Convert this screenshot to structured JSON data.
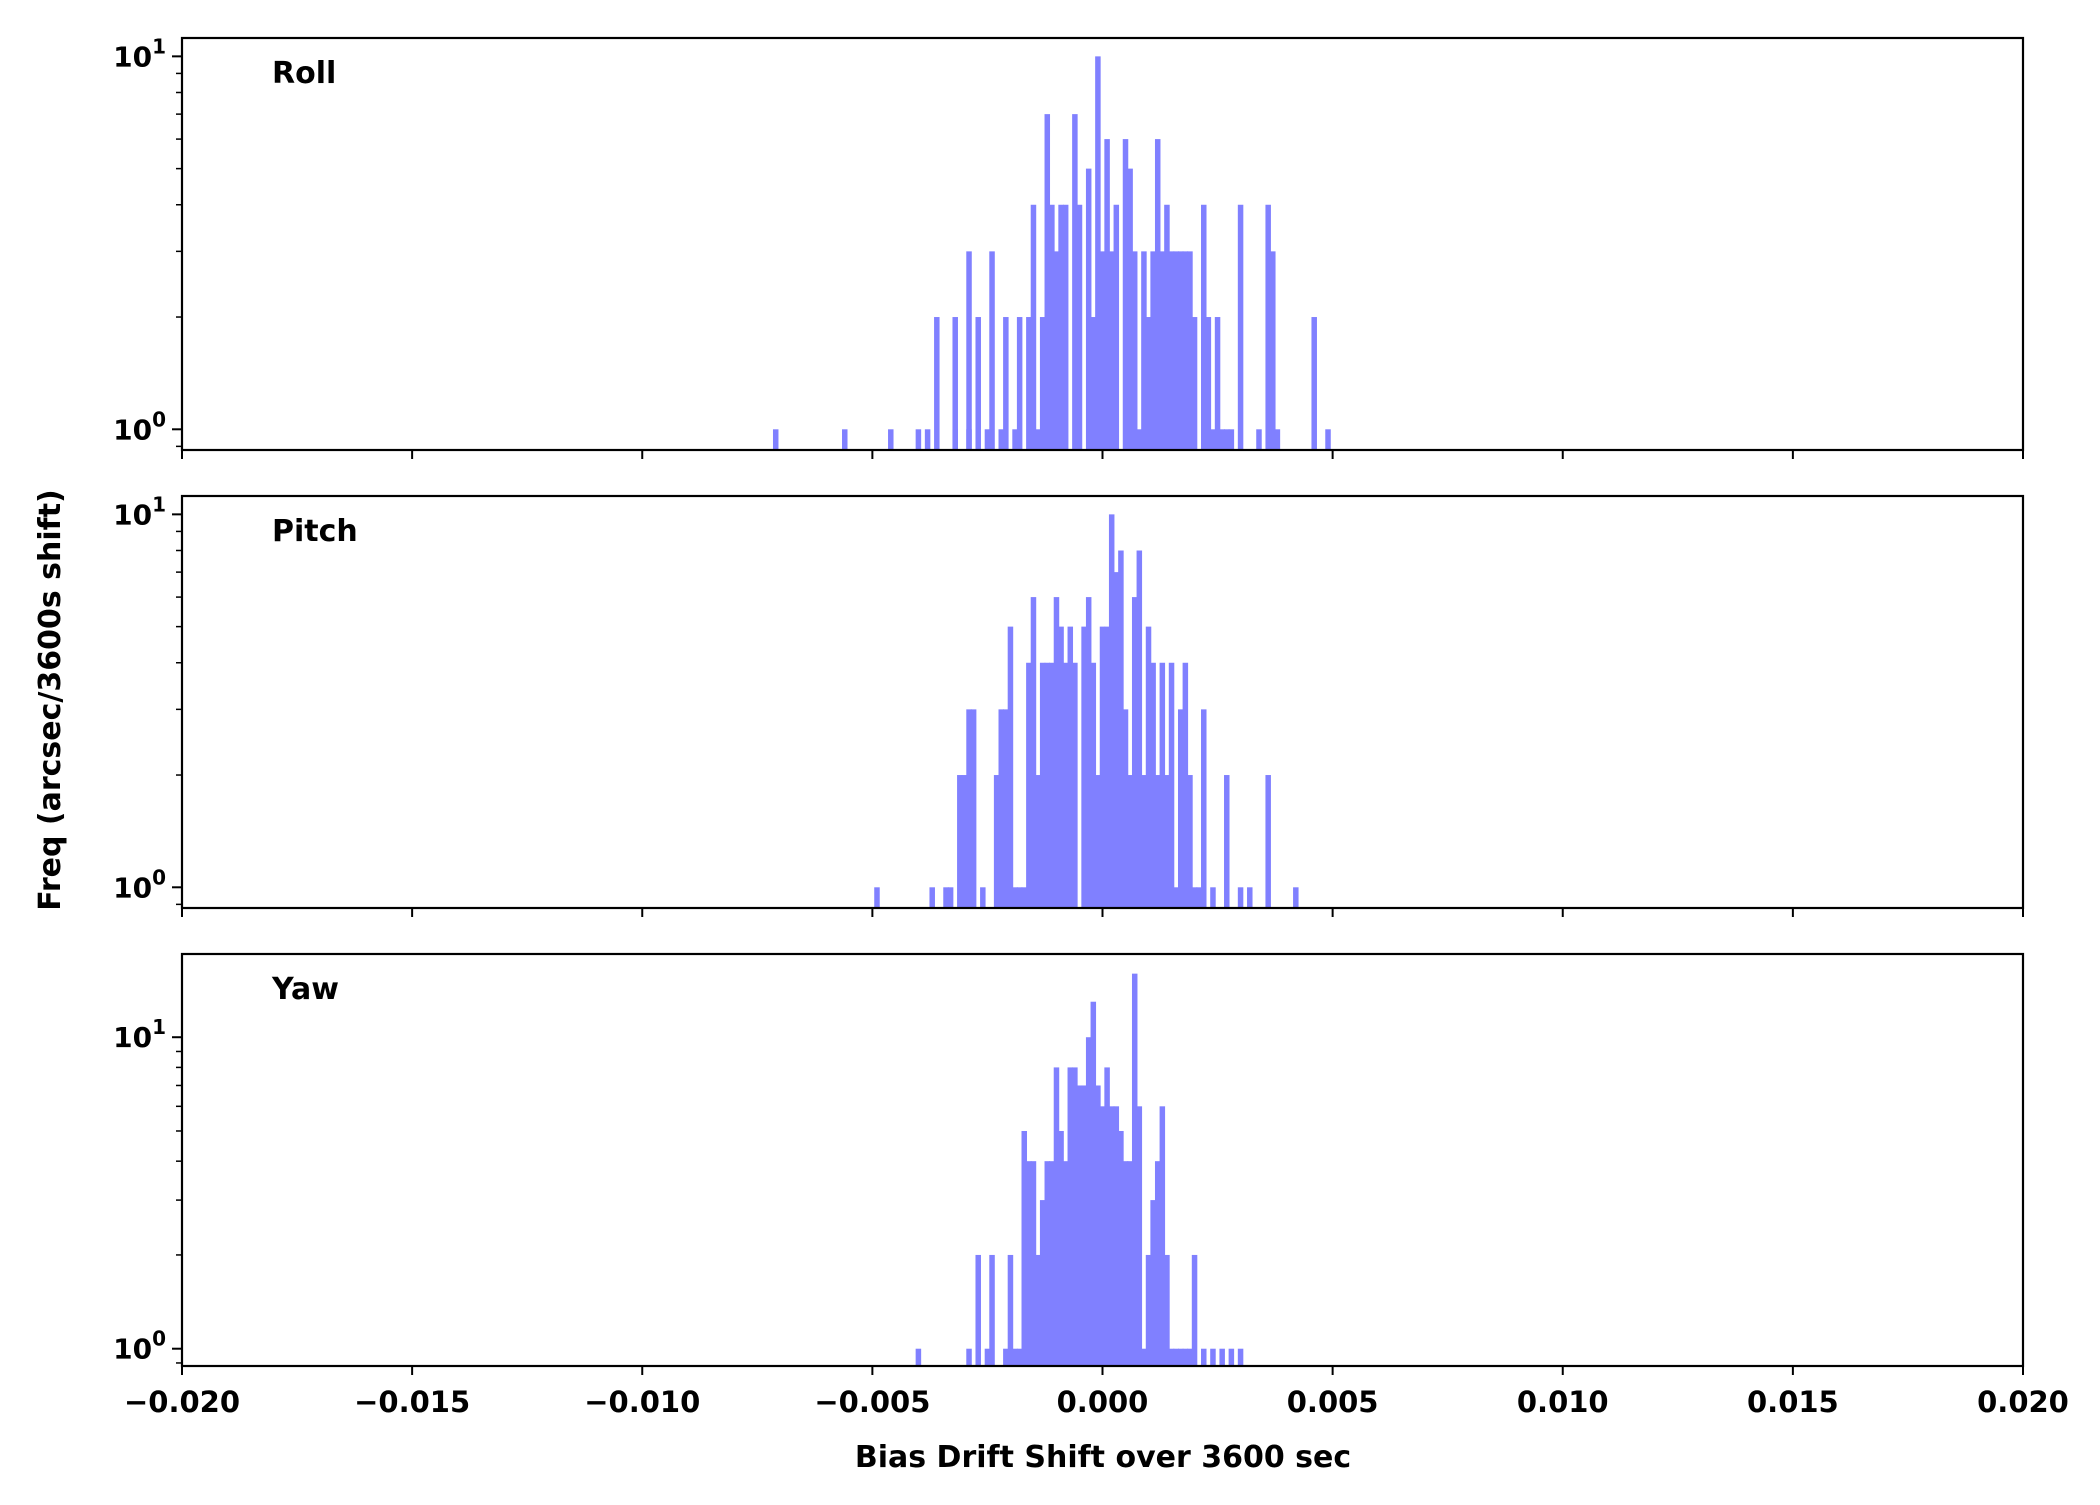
{
  "chart_data": {
    "type": "bar",
    "xlabel": "Bias Drift Shift over 3600 sec",
    "ylabel": "Freq (arcsec/3600s shift)",
    "bar_color": "#8080ff",
    "x_range": [
      -0.02,
      0.02
    ],
    "x_ticks": [
      "−0.020",
      "−0.015",
      "−0.010",
      "−0.005",
      "0.000",
      "0.005",
      "0.010",
      "0.015",
      "0.020"
    ],
    "y_scale": "log",
    "grid": false,
    "panels": [
      {
        "label": "Roll",
        "y_range": [
          0.88,
          11.2
        ],
        "y_ticks": [
          {
            "base": "10",
            "exp": "0"
          },
          {
            "base": "10",
            "exp": "1"
          }
        ],
        "bins": [
          {
            "x": -0.0071,
            "count": 1
          },
          {
            "x": -0.0056,
            "count": 1
          },
          {
            "x": -0.0046,
            "count": 1
          },
          {
            "x": -0.004,
            "count": 1
          },
          {
            "x": -0.0038,
            "count": 1
          },
          {
            "x": -0.0036,
            "count": 2
          },
          {
            "x": -0.0032,
            "count": 1
          },
          {
            "x": -0.0032,
            "count": 2
          },
          {
            "x": -0.0029,
            "count": 1
          },
          {
            "x": -0.0029,
            "count": 3
          },
          {
            "x": -0.0027,
            "count": 2
          },
          {
            "x": -0.0025,
            "count": 1
          },
          {
            "x": -0.0024,
            "count": 3
          },
          {
            "x": -0.0022,
            "count": 1
          },
          {
            "x": -0.0021,
            "count": 2
          },
          {
            "x": -0.0019,
            "count": 1
          },
          {
            "x": -0.0018,
            "count": 2
          },
          {
            "x": -0.0016,
            "count": 2
          },
          {
            "x": -0.0015,
            "count": 4
          },
          {
            "x": -0.0014,
            "count": 1
          },
          {
            "x": -0.0013,
            "count": 2
          },
          {
            "x": -0.0012,
            "count": 7
          },
          {
            "x": -0.0011,
            "count": 4
          },
          {
            "x": -0.001,
            "count": 3
          },
          {
            "x": -0.0009,
            "count": 4
          },
          {
            "x": -0.0008,
            "count": 4
          },
          {
            "x": -0.0006,
            "count": 7
          },
          {
            "x": -0.0005,
            "count": 4
          },
          {
            "x": -0.0003,
            "count": 5
          },
          {
            "x": -0.0002,
            "count": 2
          },
          {
            "x": -0.0001,
            "count": 10
          },
          {
            "x": 0.0,
            "count": 3
          },
          {
            "x": 0.0001,
            "count": 6
          },
          {
            "x": 0.0002,
            "count": 3
          },
          {
            "x": 0.0003,
            "count": 4
          },
          {
            "x": 0.0005,
            "count": 6
          },
          {
            "x": 0.0006,
            "count": 5
          },
          {
            "x": 0.0007,
            "count": 3
          },
          {
            "x": 0.0008,
            "count": 1
          },
          {
            "x": 0.0009,
            "count": 3
          },
          {
            "x": 0.001,
            "count": 2
          },
          {
            "x": 0.0011,
            "count": 3
          },
          {
            "x": 0.0012,
            "count": 6
          },
          {
            "x": 0.0013,
            "count": 3
          },
          {
            "x": 0.0014,
            "count": 4
          },
          {
            "x": 0.0015,
            "count": 3
          },
          {
            "x": 0.0016,
            "count": 3
          },
          {
            "x": 0.0017,
            "count": 3
          },
          {
            "x": 0.0018,
            "count": 3
          },
          {
            "x": 0.0019,
            "count": 3
          },
          {
            "x": 0.002,
            "count": 2
          },
          {
            "x": 0.0022,
            "count": 4
          },
          {
            "x": 0.0023,
            "count": 2
          },
          {
            "x": 0.0024,
            "count": 1
          },
          {
            "x": 0.0025,
            "count": 2
          },
          {
            "x": 0.0026,
            "count": 1
          },
          {
            "x": 0.0027,
            "count": 1
          },
          {
            "x": 0.0028,
            "count": 1
          },
          {
            "x": 0.003,
            "count": 4
          },
          {
            "x": 0.0034,
            "count": 1
          },
          {
            "x": 0.0036,
            "count": 4
          },
          {
            "x": 0.0037,
            "count": 3
          },
          {
            "x": 0.0038,
            "count": 1
          },
          {
            "x": 0.0046,
            "count": 2
          },
          {
            "x": 0.0049,
            "count": 1
          }
        ]
      },
      {
        "label": "Pitch",
        "y_range": [
          0.88,
          11.2
        ],
        "y_ticks": [
          {
            "base": "10",
            "exp": "0"
          },
          {
            "base": "10",
            "exp": "1"
          }
        ],
        "bins": [
          {
            "x": -0.0049,
            "count": 1
          },
          {
            "x": -0.0037,
            "count": 1
          },
          {
            "x": -0.0034,
            "count": 1
          },
          {
            "x": -0.0033,
            "count": 1
          },
          {
            "x": -0.0031,
            "count": 2
          },
          {
            "x": -0.003,
            "count": 2
          },
          {
            "x": -0.0029,
            "count": 3
          },
          {
            "x": -0.0028,
            "count": 3
          },
          {
            "x": -0.0026,
            "count": 1
          },
          {
            "x": -0.0023,
            "count": 2
          },
          {
            "x": -0.0022,
            "count": 3
          },
          {
            "x": -0.0021,
            "count": 3
          },
          {
            "x": -0.002,
            "count": 5
          },
          {
            "x": -0.0019,
            "count": 1
          },
          {
            "x": -0.0018,
            "count": 1
          },
          {
            "x": -0.0017,
            "count": 1
          },
          {
            "x": -0.0016,
            "count": 4
          },
          {
            "x": -0.0015,
            "count": 6
          },
          {
            "x": -0.0014,
            "count": 2
          },
          {
            "x": -0.0013,
            "count": 4
          },
          {
            "x": -0.0012,
            "count": 4
          },
          {
            "x": -0.0011,
            "count": 4
          },
          {
            "x": -0.001,
            "count": 6
          },
          {
            "x": -0.0009,
            "count": 5
          },
          {
            "x": -0.0008,
            "count": 4
          },
          {
            "x": -0.0007,
            "count": 5
          },
          {
            "x": -0.0006,
            "count": 4
          },
          {
            "x": -0.0004,
            "count": 5
          },
          {
            "x": -0.0003,
            "count": 6
          },
          {
            "x": -0.0002,
            "count": 4
          },
          {
            "x": -0.0001,
            "count": 2
          },
          {
            "x": 0.0,
            "count": 5
          },
          {
            "x": 0.0001,
            "count": 5
          },
          {
            "x": 0.0002,
            "count": 10
          },
          {
            "x": 0.0003,
            "count": 7
          },
          {
            "x": 0.0004,
            "count": 8
          },
          {
            "x": 0.0005,
            "count": 3
          },
          {
            "x": 0.0006,
            "count": 2
          },
          {
            "x": 0.0007,
            "count": 6
          },
          {
            "x": 0.0008,
            "count": 8
          },
          {
            "x": 0.0009,
            "count": 2
          },
          {
            "x": 0.001,
            "count": 5
          },
          {
            "x": 0.0011,
            "count": 4
          },
          {
            "x": 0.0012,
            "count": 2
          },
          {
            "x": 0.0013,
            "count": 4
          },
          {
            "x": 0.0014,
            "count": 2
          },
          {
            "x": 0.0015,
            "count": 4
          },
          {
            "x": 0.0016,
            "count": 1
          },
          {
            "x": 0.0017,
            "count": 3
          },
          {
            "x": 0.0018,
            "count": 4
          },
          {
            "x": 0.0019,
            "count": 2
          },
          {
            "x": 0.002,
            "count": 1
          },
          {
            "x": 0.0021,
            "count": 1
          },
          {
            "x": 0.0022,
            "count": 3
          },
          {
            "x": 0.0024,
            "count": 1
          },
          {
            "x": 0.0027,
            "count": 2
          },
          {
            "x": 0.003,
            "count": 1
          },
          {
            "x": 0.0032,
            "count": 1
          },
          {
            "x": 0.0036,
            "count": 2
          },
          {
            "x": 0.0042,
            "count": 1
          }
        ]
      },
      {
        "label": "Yaw",
        "y_range": [
          0.88,
          18.5
        ],
        "y_ticks": [
          {
            "base": "10",
            "exp": "0"
          },
          {
            "base": "10",
            "exp": "1"
          }
        ],
        "bins": [
          {
            "x": -0.004,
            "count": 1
          },
          {
            "x": -0.0029,
            "count": 1
          },
          {
            "x": -0.0027,
            "count": 2
          },
          {
            "x": -0.0025,
            "count": 1
          },
          {
            "x": -0.0024,
            "count": 2
          },
          {
            "x": -0.0021,
            "count": 1
          },
          {
            "x": -0.002,
            "count": 2
          },
          {
            "x": -0.0019,
            "count": 1
          },
          {
            "x": -0.0018,
            "count": 1
          },
          {
            "x": -0.0017,
            "count": 5
          },
          {
            "x": -0.0016,
            "count": 4
          },
          {
            "x": -0.0015,
            "count": 4
          },
          {
            "x": -0.0014,
            "count": 2
          },
          {
            "x": -0.0013,
            "count": 3
          },
          {
            "x": -0.0012,
            "count": 4
          },
          {
            "x": -0.0011,
            "count": 4
          },
          {
            "x": -0.001,
            "count": 8
          },
          {
            "x": -0.0009,
            "count": 5
          },
          {
            "x": -0.0008,
            "count": 4
          },
          {
            "x": -0.0007,
            "count": 8
          },
          {
            "x": -0.0006,
            "count": 8
          },
          {
            "x": -0.0005,
            "count": 7
          },
          {
            "x": -0.0004,
            "count": 7
          },
          {
            "x": -0.0003,
            "count": 10
          },
          {
            "x": -0.0002,
            "count": 13
          },
          {
            "x": -0.0001,
            "count": 7
          },
          {
            "x": 0.0,
            "count": 6
          },
          {
            "x": 0.0001,
            "count": 8
          },
          {
            "x": 0.0002,
            "count": 6
          },
          {
            "x": 0.0003,
            "count": 6
          },
          {
            "x": 0.0004,
            "count": 5
          },
          {
            "x": 0.0005,
            "count": 4
          },
          {
            "x": 0.0006,
            "count": 4
          },
          {
            "x": 0.0007,
            "count": 16
          },
          {
            "x": 0.0008,
            "count": 6
          },
          {
            "x": 0.0009,
            "count": 1
          },
          {
            "x": 0.001,
            "count": 2
          },
          {
            "x": 0.0011,
            "count": 3
          },
          {
            "x": 0.0012,
            "count": 4
          },
          {
            "x": 0.0013,
            "count": 6
          },
          {
            "x": 0.0014,
            "count": 2
          },
          {
            "x": 0.0015,
            "count": 1
          },
          {
            "x": 0.0016,
            "count": 1
          },
          {
            "x": 0.0017,
            "count": 1
          },
          {
            "x": 0.0018,
            "count": 1
          },
          {
            "x": 0.0019,
            "count": 1
          },
          {
            "x": 0.002,
            "count": 2
          },
          {
            "x": 0.0022,
            "count": 1
          },
          {
            "x": 0.0024,
            "count": 1
          },
          {
            "x": 0.0026,
            "count": 1
          },
          {
            "x": 0.0028,
            "count": 1
          },
          {
            "x": 0.003,
            "count": 1
          }
        ]
      }
    ]
  }
}
